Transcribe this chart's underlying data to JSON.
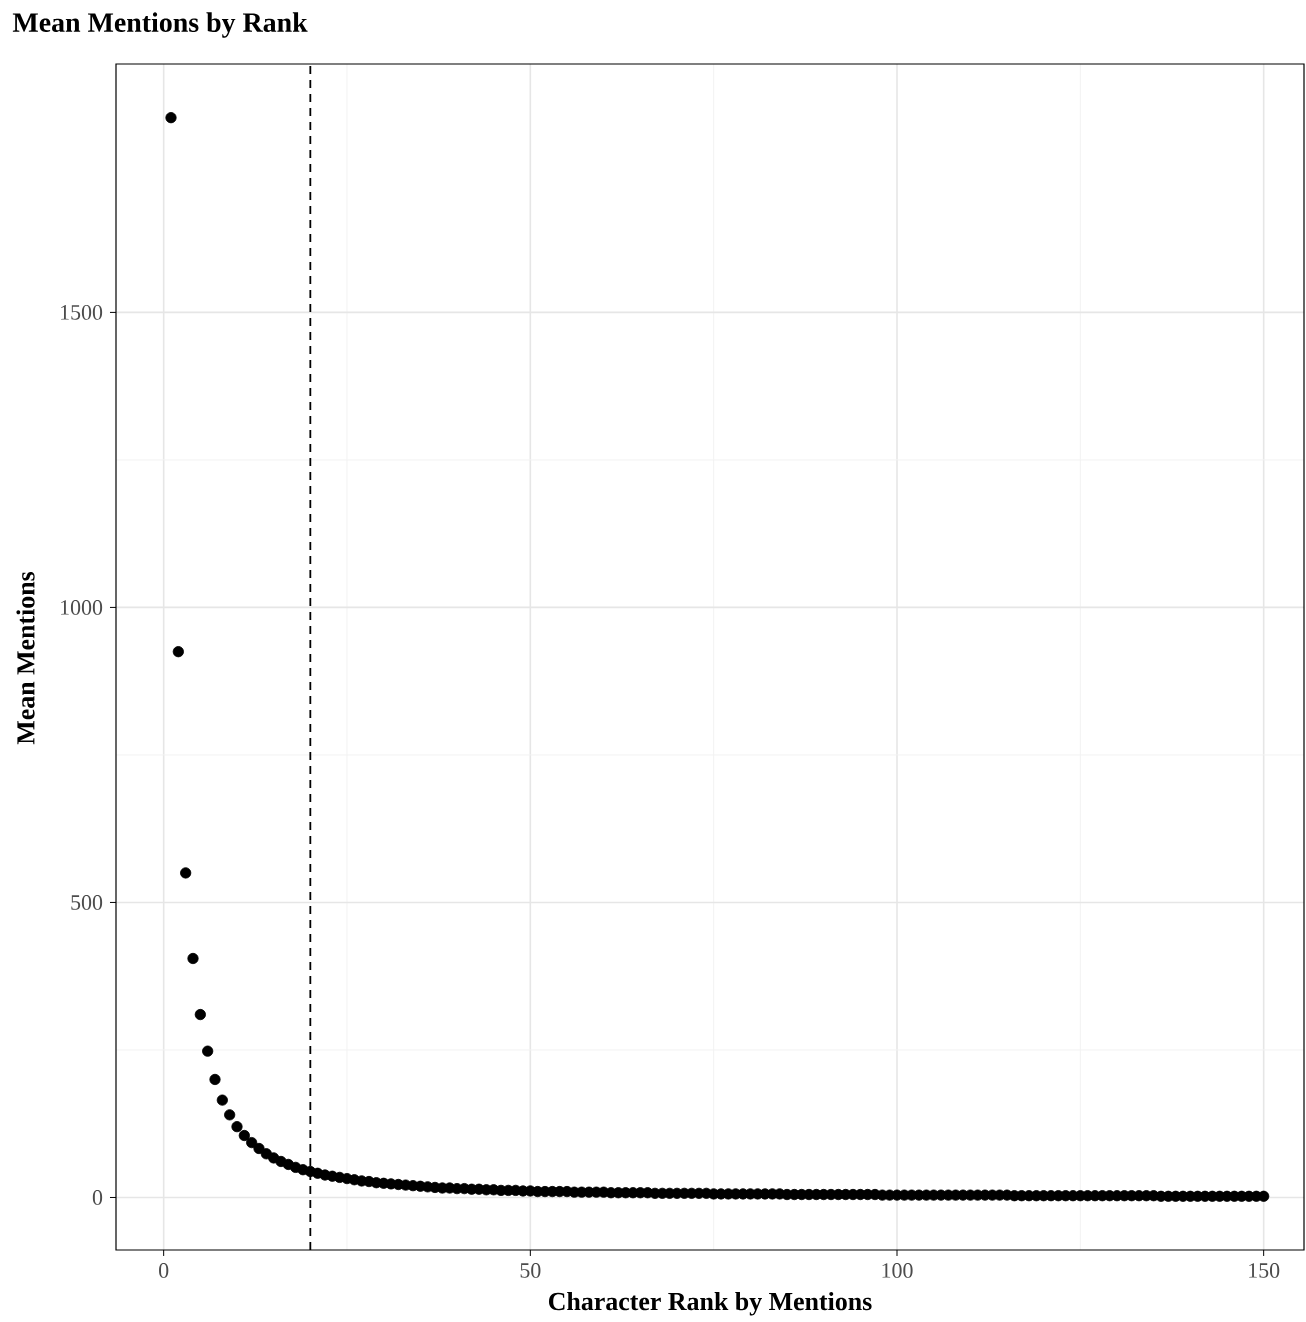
{
  "chart_data": {
    "type": "scatter",
    "title": "Mean Mentions by Rank",
    "xlabel": "Character Rank by Mentions",
    "ylabel": "Mean Mentions",
    "x": [
      1,
      2,
      3,
      4,
      5,
      6,
      7,
      8,
      9,
      10,
      11,
      12,
      13,
      14,
      15,
      16,
      17,
      18,
      19,
      20,
      21,
      22,
      23,
      24,
      25,
      26,
      27,
      28,
      29,
      30,
      31,
      32,
      33,
      34,
      35,
      36,
      37,
      38,
      39,
      40,
      41,
      42,
      43,
      44,
      45,
      46,
      47,
      48,
      49,
      50,
      51,
      52,
      53,
      54,
      55,
      56,
      57,
      58,
      59,
      60,
      61,
      62,
      63,
      64,
      65,
      66,
      67,
      68,
      69,
      70,
      71,
      72,
      73,
      74,
      75,
      76,
      77,
      78,
      79,
      80,
      81,
      82,
      83,
      84,
      85,
      86,
      87,
      88,
      89,
      90,
      91,
      92,
      93,
      94,
      95,
      96,
      97,
      98,
      99,
      100,
      101,
      102,
      103,
      104,
      105,
      106,
      107,
      108,
      109,
      110,
      111,
      112,
      113,
      114,
      115,
      116,
      117,
      118,
      119,
      120,
      121,
      122,
      123,
      124,
      125,
      126,
      127,
      128,
      129,
      130,
      131,
      132,
      133,
      134,
      135,
      136,
      137,
      138,
      139,
      140,
      141,
      142,
      143,
      144,
      145,
      146,
      147,
      148,
      149,
      150
    ],
    "series": [
      {
        "color": "#000000",
        "values": [
          1830,
          925,
          550,
          405,
          310,
          248,
          200,
          165,
          140,
          120,
          105,
          93,
          83,
          74,
          67,
          61,
          56,
          51,
          47,
          44,
          41,
          38,
          36,
          34,
          32,
          30,
          28,
          27,
          25,
          24,
          23,
          22,
          21,
          20,
          19,
          18,
          17,
          16,
          16,
          15,
          15,
          14,
          14,
          13,
          13,
          12,
          12,
          12,
          11,
          11,
          10,
          10,
          10,
          10,
          10,
          9,
          9,
          9,
          9,
          9,
          8,
          8,
          8,
          8,
          8,
          8,
          7,
          7,
          7,
          7,
          7,
          7,
          7,
          7,
          6,
          6,
          6,
          6,
          6,
          6,
          6,
          6,
          6,
          6,
          5,
          5,
          5,
          5,
          5,
          5,
          5,
          5,
          5,
          5,
          5,
          5,
          5,
          4,
          4,
          4,
          4,
          4,
          4,
          4,
          4,
          4,
          4,
          4,
          4,
          4,
          4,
          4,
          4,
          4,
          4,
          3,
          3,
          3,
          3,
          3,
          3,
          3,
          3,
          3,
          3,
          3,
          3,
          3,
          3,
          3,
          3,
          3,
          3,
          3,
          3,
          2,
          2,
          2,
          2,
          2,
          2,
          2,
          2,
          2,
          2,
          2,
          2,
          2,
          2,
          2
        ]
      }
    ],
    "xlim": [
      -6.5,
      155.5
    ],
    "ylim": [
      -89,
      1921
    ],
    "xticks": [
      0,
      50,
      100,
      150
    ],
    "yticks": [
      0,
      500,
      1000,
      1500
    ],
    "grid": true,
    "marker": "circle",
    "ref_lines": [
      {
        "axis": "x",
        "value": 20,
        "line_style": "dashed",
        "color": "#000000"
      }
    ]
  }
}
